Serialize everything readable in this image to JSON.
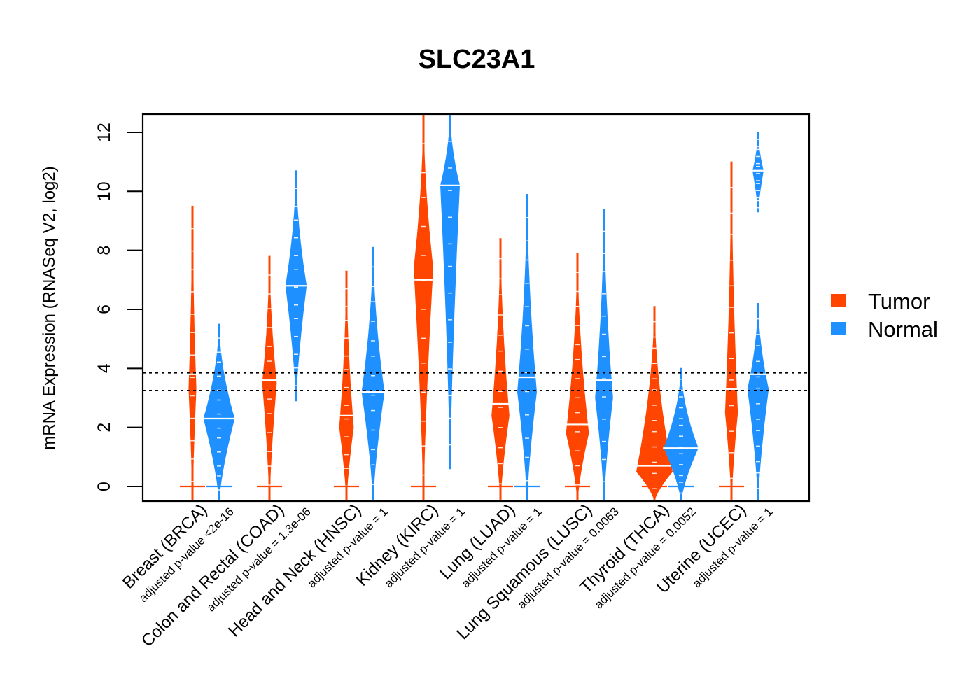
{
  "chart_data": {
    "type": "violin",
    "title": "SLC23A1",
    "xlabel": "",
    "ylabel": "mRNA Expression (RNASeq V2, log2)",
    "ylim": [
      -0.5,
      12.6
    ],
    "yticks": [
      0,
      2,
      4,
      6,
      8,
      10,
      12
    ],
    "ytick_labels": [
      "0",
      "2",
      "4",
      "6",
      "8",
      "10",
      "12"
    ],
    "grid": false,
    "legend": {
      "position": "right",
      "entries": [
        {
          "label": "Tumor",
          "color": "#FF4500"
        },
        {
          "label": "Normal",
          "color": "#1E90FF"
        }
      ]
    },
    "reference_lines": [
      {
        "y": 3.85,
        "style": "dotted"
      },
      {
        "y": 3.25,
        "style": "dotted"
      }
    ],
    "categories": [
      {
        "name": "Breast (BRCA)",
        "pvalue_label": "adjusted p-value <2e-16",
        "tumor": {
          "min": -0.5,
          "max": 9.5,
          "median": 3.8,
          "zero_marker": 0,
          "mode": 3.3,
          "width": 0.15
        },
        "normal": {
          "min": -0.5,
          "max": 5.5,
          "median": 2.3,
          "zero_marker": 0,
          "mode": 2.3,
          "width": 0.85
        }
      },
      {
        "name": "Colon and Rectal (COAD)",
        "pvalue_label": "adjusted p-value = 1.3e-06",
        "tumor": {
          "min": -0.5,
          "max": 7.8,
          "median": 3.6,
          "zero_marker": 0,
          "mode": 3.5,
          "width": 0.35
        },
        "normal": {
          "min": 2.9,
          "max": 10.7,
          "median": 6.8,
          "zero_marker": null,
          "mode": 6.8,
          "width": 0.55
        }
      },
      {
        "name": "Head and Neck (HNSC)",
        "pvalue_label": "adjusted p-value = 1",
        "tumor": {
          "min": -0.5,
          "max": 7.3,
          "median": 2.4,
          "zero_marker": 0,
          "mode": 2.0,
          "width": 0.35
        },
        "normal": {
          "min": -0.5,
          "max": 8.1,
          "median": 3.2,
          "zero_marker": null,
          "mode": 3.2,
          "width": 0.6
        }
      },
      {
        "name": "Kidney (KIRC)",
        "pvalue_label": "adjusted p-value = 1",
        "tumor": {
          "min": -0.5,
          "max": 12.6,
          "median": 7.0,
          "zero_marker": 0,
          "mode": 7.4,
          "width": 0.5
        },
        "normal": {
          "min": 0.6,
          "max": 12.6,
          "median": 10.2,
          "zero_marker": null,
          "mode": 10.2,
          "width": 0.5
        }
      },
      {
        "name": "Lung (LUAD)",
        "pvalue_label": "adjusted p-value = 1",
        "tumor": {
          "min": -0.5,
          "max": 8.4,
          "median": 2.8,
          "zero_marker": 0,
          "mode": 2.4,
          "width": 0.45
        },
        "normal": {
          "min": -0.5,
          "max": 9.9,
          "median": 3.7,
          "zero_marker": 0,
          "mode": 3.2,
          "width": 0.5
        }
      },
      {
        "name": "Lung Squamous (LUSC)",
        "pvalue_label": "adjusted p-value = 0.0063",
        "tumor": {
          "min": -0.5,
          "max": 7.9,
          "median": 2.1,
          "zero_marker": 0,
          "mode": 1.8,
          "width": 0.6
        },
        "normal": {
          "min": -0.5,
          "max": 9.4,
          "median": 3.6,
          "zero_marker": null,
          "mode": 3.0,
          "width": 0.45
        }
      },
      {
        "name": "Thyroid (THCA)",
        "pvalue_label": "adjusted p-value = 0.0052",
        "tumor": {
          "min": -0.5,
          "max": 6.1,
          "median": 0.7,
          "zero_marker": 0,
          "mode": 0.5,
          "width": 1.0
        },
        "normal": {
          "min": -0.5,
          "max": 4.0,
          "median": 1.3,
          "zero_marker": 0,
          "mode": 1.3,
          "width": 0.95
        }
      },
      {
        "name": "Uterine (UCEC)",
        "pvalue_label": "adjusted p-value = 1",
        "tumor": {
          "min": -0.5,
          "max": 11.0,
          "median": 3.3,
          "zero_marker": 0,
          "mode": 2.5,
          "width": 0.3
        },
        "normal": {
          "min": -0.5,
          "max": 6.2,
          "median": 3.8,
          "zero_marker": null,
          "mode": 3.3,
          "width": 0.55,
          "extra_cluster": {
            "min": 9.3,
            "max": 12.0,
            "median": 10.7,
            "width": 0.25
          }
        }
      }
    ]
  }
}
